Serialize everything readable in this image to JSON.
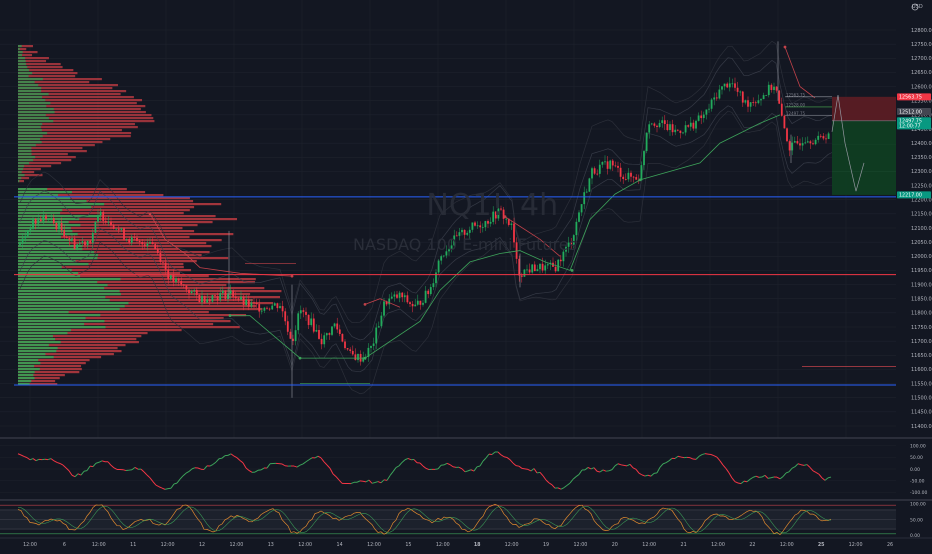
{
  "symbol": {
    "ticker": "NQ1!",
    "interval": "4h",
    "name": "NASDAQ 100 E-mini Futures"
  },
  "currency": "USD",
  "price_axis": {
    "ticks": [
      "12800.00",
      "12750.00",
      "12700.00",
      "12650.00",
      "12600.00",
      "12550.00",
      "12500.00",
      "12450.00",
      "12400.00",
      "12350.00",
      "12300.00",
      "12250.00",
      "12200.00",
      "12150.00",
      "12100.00",
      "12050.00",
      "12000.00",
      "11950.00",
      "11900.00",
      "11850.00",
      "11800.00",
      "11750.00",
      "11700.00",
      "11650.00",
      "11600.00",
      "11550.00",
      "11500.00",
      "11450.00",
      "11400.00"
    ],
    "range": [
      11380,
      12830
    ]
  },
  "price_badges": [
    {
      "label": "12563.75",
      "color": "#f23645",
      "price": 12563.75
    },
    {
      "label": "12512.00",
      "color": "#434651",
      "price": 12512
    },
    {
      "label": "12497.75",
      "color": "#089981",
      "price": 12479
    },
    {
      "label": "12:00:77",
      "color": "#089981",
      "price": 12461
    },
    {
      "label": "12217.00",
      "color": "#089981",
      "price": 12217
    }
  ],
  "horizontal_lines": [
    {
      "price": 12210,
      "color": "#2962ff"
    },
    {
      "price": 11935,
      "color": "#f23645"
    },
    {
      "price": 11545,
      "color": "#2962ff"
    }
  ],
  "fib_labels": [
    "12563.75",
    "12528.00",
    "12497.75"
  ],
  "time_axis": [
    "12:00",
    "6",
    "12:00",
    "11",
    "12:00",
    "12",
    "12:00",
    "13",
    "12:00",
    "14",
    "12:00",
    "15",
    "12:00",
    "18",
    "12:00",
    "19",
    "12:00",
    "20",
    "12:00",
    "21",
    "12:00",
    "22",
    "12:00",
    "25",
    "12:00",
    "26"
  ],
  "oscillator1": {
    "ticks": [
      "100.00",
      "50.00",
      "0.00",
      "-50.00",
      "-100.00"
    ],
    "range": [
      -125,
      125
    ]
  },
  "oscillator2": {
    "ticks": [
      "100.00",
      "50.00",
      "0.00"
    ],
    "range": [
      -5,
      105
    ]
  },
  "colors": {
    "bull": "#22ab5c",
    "bear": "#f23645",
    "background": "#131722",
    "grid": "#1e222d",
    "text": "#b2b5be"
  },
  "icons": {
    "settings": "gear-icon"
  }
}
